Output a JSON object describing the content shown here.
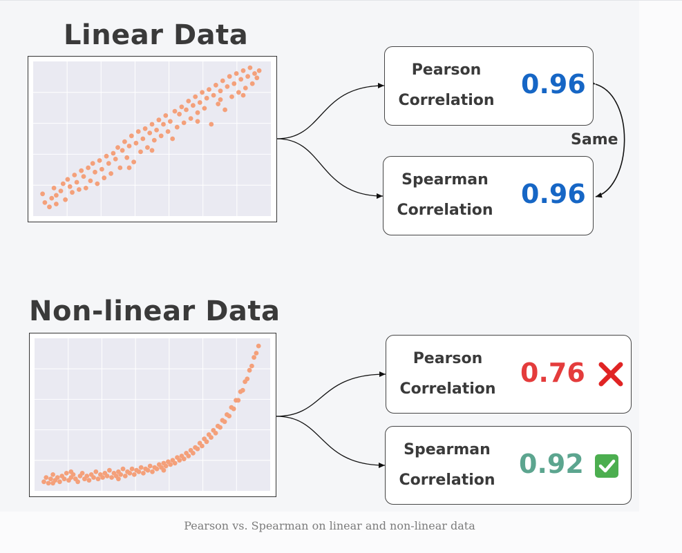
{
  "linear": {
    "heading": "Linear Data",
    "pearson": {
      "label_line1": "Pearson",
      "label_line2": "Correlation",
      "value": "0.96"
    },
    "spearman": {
      "label_line1": "Spearman",
      "label_line2": "Correlation",
      "value": "0.96"
    },
    "relation_label": "Same"
  },
  "nonlinear": {
    "heading": "Non-linear Data",
    "pearson": {
      "label_line1": "Pearson",
      "label_line2": "Correlation",
      "value": "0.76",
      "mark_icon": "cross-mark-icon"
    },
    "spearman": {
      "label_line1": "Spearman",
      "label_line2": "Correlation",
      "value": "0.92",
      "mark_icon": "check-mark-icon"
    }
  },
  "caption": "Pearson vs. Spearman on linear and non-linear data",
  "colors": {
    "points": "#f4a07a",
    "plot_bg": "#eaeaf2",
    "pearson_linear": "#1666c5",
    "bad": "#e43c3c",
    "good": "#5ca58f"
  },
  "chart_data": [
    {
      "type": "scatter",
      "title": "Linear Data",
      "xlabel": "",
      "ylabel": "",
      "grid": true,
      "trend": "linear",
      "x_range": [
        0,
        1
      ],
      "y_range": [
        0,
        1
      ],
      "points": [
        [
          0.02,
          0.12
        ],
        [
          0.03,
          0.06
        ],
        [
          0.05,
          0.03
        ],
        [
          0.06,
          0.09
        ],
        [
          0.07,
          0.16
        ],
        [
          0.08,
          0.11
        ],
        [
          0.1,
          0.14
        ],
        [
          0.11,
          0.19
        ],
        [
          0.12,
          0.08
        ],
        [
          0.13,
          0.22
        ],
        [
          0.14,
          0.17
        ],
        [
          0.15,
          0.13
        ],
        [
          0.16,
          0.25
        ],
        [
          0.17,
          0.2
        ],
        [
          0.19,
          0.28
        ],
        [
          0.2,
          0.24
        ],
        [
          0.21,
          0.16
        ],
        [
          0.22,
          0.3
        ],
        [
          0.23,
          0.21
        ],
        [
          0.24,
          0.33
        ],
        [
          0.25,
          0.27
        ],
        [
          0.26,
          0.19
        ],
        [
          0.27,
          0.35
        ],
        [
          0.28,
          0.29
        ],
        [
          0.3,
          0.38
        ],
        [
          0.31,
          0.33
        ],
        [
          0.32,
          0.26
        ],
        [
          0.33,
          0.4
        ],
        [
          0.34,
          0.36
        ],
        [
          0.35,
          0.44
        ],
        [
          0.36,
          0.3
        ],
        [
          0.37,
          0.42
        ],
        [
          0.38,
          0.48
        ],
        [
          0.39,
          0.37
        ],
        [
          0.4,
          0.45
        ],
        [
          0.41,
          0.52
        ],
        [
          0.42,
          0.34
        ],
        [
          0.43,
          0.47
        ],
        [
          0.44,
          0.55
        ],
        [
          0.45,
          0.41
        ],
        [
          0.46,
          0.5
        ],
        [
          0.47,
          0.57
        ],
        [
          0.48,
          0.44
        ],
        [
          0.49,
          0.54
        ],
        [
          0.5,
          0.6
        ],
        [
          0.51,
          0.49
        ],
        [
          0.52,
          0.56
        ],
        [
          0.53,
          0.63
        ],
        [
          0.54,
          0.52
        ],
        [
          0.55,
          0.6
        ],
        [
          0.56,
          0.66
        ],
        [
          0.57,
          0.55
        ],
        [
          0.58,
          0.62
        ],
        [
          0.6,
          0.69
        ],
        [
          0.61,
          0.58
        ],
        [
          0.62,
          0.67
        ],
        [
          0.63,
          0.72
        ],
        [
          0.64,
          0.61
        ],
        [
          0.65,
          0.7
        ],
        [
          0.66,
          0.76
        ],
        [
          0.67,
          0.64
        ],
        [
          0.68,
          0.73
        ],
        [
          0.69,
          0.79
        ],
        [
          0.7,
          0.68
        ],
        [
          0.71,
          0.75
        ],
        [
          0.72,
          0.82
        ],
        [
          0.73,
          0.71
        ],
        [
          0.74,
          0.78
        ],
        [
          0.75,
          0.84
        ],
        [
          0.76,
          0.6
        ],
        [
          0.77,
          0.8
        ],
        [
          0.78,
          0.87
        ],
        [
          0.79,
          0.74
        ],
        [
          0.8,
          0.83
        ],
        [
          0.81,
          0.9
        ],
        [
          0.82,
          0.7
        ],
        [
          0.83,
          0.86
        ],
        [
          0.84,
          0.93
        ],
        [
          0.85,
          0.79
        ],
        [
          0.86,
          0.88
        ],
        [
          0.87,
          0.95
        ],
        [
          0.88,
          0.82
        ],
        [
          0.89,
          0.91
        ],
        [
          0.9,
          0.97
        ],
        [
          0.91,
          0.85
        ],
        [
          0.92,
          0.93
        ],
        [
          0.93,
          0.99
        ],
        [
          0.94,
          0.88
        ],
        [
          0.95,
          0.95
        ],
        [
          0.96,
          0.92
        ],
        [
          0.08,
          0.05
        ],
        [
          0.18,
          0.15
        ],
        [
          0.29,
          0.23
        ],
        [
          0.4,
          0.3
        ],
        [
          0.5,
          0.42
        ],
        [
          0.59,
          0.5
        ],
        [
          0.7,
          0.62
        ],
        [
          0.8,
          0.77
        ],
        [
          0.9,
          0.8
        ],
        [
          0.97,
          0.97
        ]
      ]
    },
    {
      "type": "scatter",
      "title": "Non-linear Data",
      "xlabel": "",
      "ylabel": "",
      "grid": true,
      "trend": "exponential",
      "x_range": [
        0,
        1
      ],
      "y_range": [
        0,
        1
      ],
      "points": [
        [
          0.02,
          0.03
        ],
        [
          0.03,
          0.06
        ],
        [
          0.04,
          0.02
        ],
        [
          0.05,
          0.05
        ],
        [
          0.06,
          0.08
        ],
        [
          0.07,
          0.04
        ],
        [
          0.08,
          0.06
        ],
        [
          0.09,
          0.03
        ],
        [
          0.1,
          0.07
        ],
        [
          0.11,
          0.05
        ],
        [
          0.12,
          0.09
        ],
        [
          0.13,
          0.04
        ],
        [
          0.14,
          0.06
        ],
        [
          0.15,
          0.08
        ],
        [
          0.16,
          0.05
        ],
        [
          0.17,
          0.03
        ],
        [
          0.18,
          0.07
        ],
        [
          0.19,
          0.09
        ],
        [
          0.2,
          0.05
        ],
        [
          0.21,
          0.07
        ],
        [
          0.22,
          0.04
        ],
        [
          0.23,
          0.08
        ],
        [
          0.24,
          0.06
        ],
        [
          0.25,
          0.1
        ],
        [
          0.26,
          0.05
        ],
        [
          0.27,
          0.08
        ],
        [
          0.28,
          0.06
        ],
        [
          0.29,
          0.09
        ],
        [
          0.3,
          0.07
        ],
        [
          0.31,
          0.11
        ],
        [
          0.32,
          0.06
        ],
        [
          0.33,
          0.09
        ],
        [
          0.34,
          0.07
        ],
        [
          0.35,
          0.1
        ],
        [
          0.36,
          0.08
        ],
        [
          0.37,
          0.12
        ],
        [
          0.38,
          0.07
        ],
        [
          0.39,
          0.1
        ],
        [
          0.4,
          0.09
        ],
        [
          0.41,
          0.12
        ],
        [
          0.42,
          0.08
        ],
        [
          0.43,
          0.11
        ],
        [
          0.44,
          0.1
        ],
        [
          0.45,
          0.13
        ],
        [
          0.46,
          0.09
        ],
        [
          0.47,
          0.12
        ],
        [
          0.48,
          0.11
        ],
        [
          0.49,
          0.14
        ],
        [
          0.5,
          0.1
        ],
        [
          0.51,
          0.13
        ],
        [
          0.52,
          0.12
        ],
        [
          0.53,
          0.15
        ],
        [
          0.54,
          0.13
        ],
        [
          0.55,
          0.16
        ],
        [
          0.56,
          0.14
        ],
        [
          0.57,
          0.17
        ],
        [
          0.58,
          0.15
        ],
        [
          0.59,
          0.18
        ],
        [
          0.6,
          0.16
        ],
        [
          0.61,
          0.2
        ],
        [
          0.62,
          0.18
        ],
        [
          0.63,
          0.21
        ],
        [
          0.64,
          0.19
        ],
        [
          0.65,
          0.23
        ],
        [
          0.66,
          0.21
        ],
        [
          0.67,
          0.25
        ],
        [
          0.68,
          0.23
        ],
        [
          0.69,
          0.27
        ],
        [
          0.7,
          0.26
        ],
        [
          0.71,
          0.3
        ],
        [
          0.72,
          0.28
        ],
        [
          0.73,
          0.33
        ],
        [
          0.74,
          0.31
        ],
        [
          0.75,
          0.36
        ],
        [
          0.76,
          0.34
        ],
        [
          0.77,
          0.39
        ],
        [
          0.78,
          0.37
        ],
        [
          0.79,
          0.42
        ],
        [
          0.8,
          0.41
        ],
        [
          0.81,
          0.46
        ],
        [
          0.82,
          0.45
        ],
        [
          0.83,
          0.5
        ],
        [
          0.84,
          0.49
        ],
        [
          0.85,
          0.55
        ],
        [
          0.86,
          0.54
        ],
        [
          0.87,
          0.6
        ],
        [
          0.88,
          0.6
        ],
        [
          0.89,
          0.66
        ],
        [
          0.9,
          0.67
        ],
        [
          0.91,
          0.73
        ],
        [
          0.92,
          0.75
        ],
        [
          0.93,
          0.81
        ],
        [
          0.94,
          0.84
        ],
        [
          0.95,
          0.9
        ],
        [
          0.96,
          0.93
        ],
        [
          0.97,
          0.98
        ],
        [
          0.14,
          0.1
        ],
        [
          0.35,
          0.05
        ],
        [
          0.55,
          0.11
        ],
        [
          0.06,
          0.02
        ]
      ]
    }
  ]
}
